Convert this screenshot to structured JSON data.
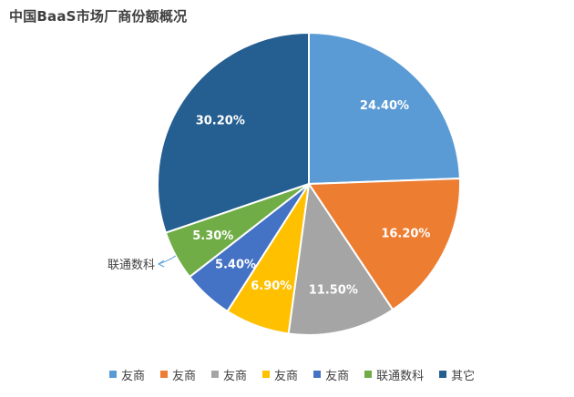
{
  "title": "中国BaaS市场厂商份额概况",
  "chart_data": {
    "type": "pie",
    "title": "中国BaaS市场厂商份额概况",
    "start_angle_deg": 0,
    "direction": "clockwise",
    "slices": [
      {
        "name": "友商",
        "value": 24.4,
        "label": "24.40%",
        "color": "#5b9bd5"
      },
      {
        "name": "友商",
        "value": 16.2,
        "label": "16.20%",
        "color": "#ed7d31"
      },
      {
        "name": "友商",
        "value": 11.5,
        "label": "11.50%",
        "color": "#a5a5a5"
      },
      {
        "name": "友商",
        "value": 6.9,
        "label": "6.90%",
        "color": "#ffc000"
      },
      {
        "name": "友商",
        "value": 5.4,
        "label": "5.40%",
        "color": "#4472c4"
      },
      {
        "name": "联通数科",
        "value": 5.3,
        "label": "5.30%",
        "color": "#70ad47"
      },
      {
        "name": "其它",
        "value": 30.2,
        "label": "30.20%",
        "color": "#255e91"
      }
    ],
    "callout": {
      "text": "联通数科",
      "slice_index": 5
    },
    "legend_position": "bottom"
  }
}
